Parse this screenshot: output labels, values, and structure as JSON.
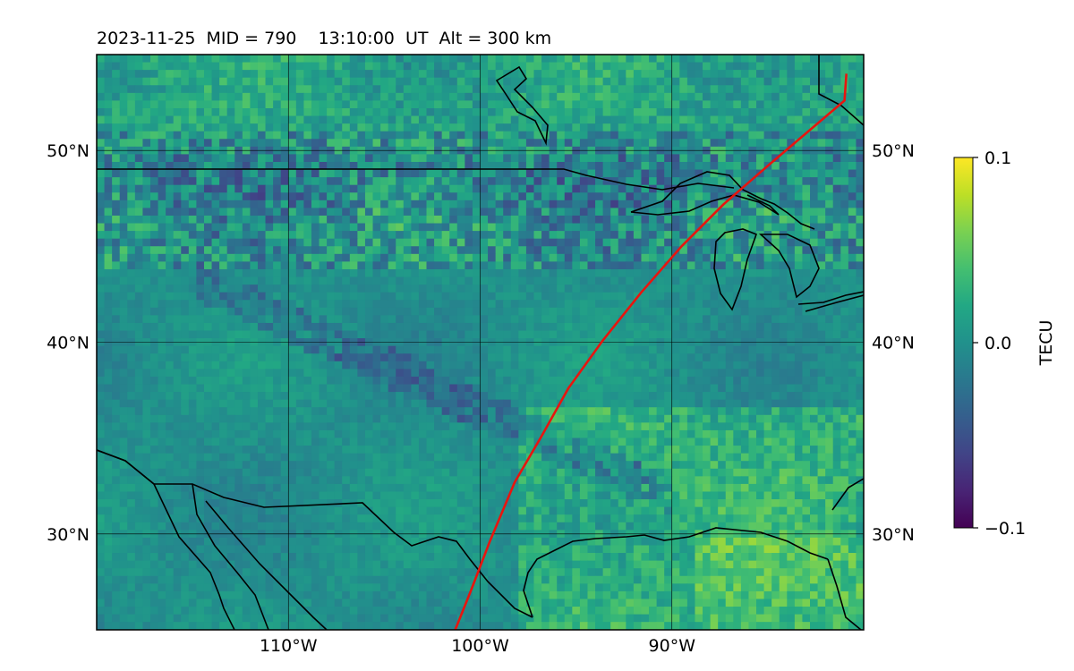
{
  "title": "2023-11-25  MID = 790    13:10:00  UT  Alt = 300 km",
  "map": {
    "lon_range": [
      -120,
      -80
    ],
    "lat_range": [
      25,
      55
    ],
    "lat_ticks": [
      {
        "value": 30,
        "label": "30°N"
      },
      {
        "value": 40,
        "label": "40°N"
      },
      {
        "value": 50,
        "label": "50°N"
      }
    ],
    "lon_ticks": [
      {
        "value": -110,
        "label": "110°W"
      },
      {
        "value": -100,
        "label": "100°W"
      },
      {
        "value": -90,
        "label": "90°W"
      }
    ],
    "gridlines": true,
    "track_color": "#e8150f",
    "track": [
      [
        -101.3,
        25
      ],
      [
        -100.5,
        27
      ],
      [
        -99.5,
        29.6
      ],
      [
        -98.2,
        32.7
      ],
      [
        -96.8,
        35.1
      ],
      [
        -95.4,
        37.6
      ],
      [
        -93.6,
        40.1
      ],
      [
        -91.6,
        42.6
      ],
      [
        -89.5,
        45
      ],
      [
        -87.3,
        47.2
      ],
      [
        -85.0,
        49.2
      ],
      [
        -83.0,
        50.9
      ],
      [
        -81.0,
        52.6
      ],
      [
        -80.9,
        54.0
      ]
    ]
  },
  "colorbar": {
    "label": "TECU",
    "min": -0.1,
    "max": 0.1,
    "ticks": [
      {
        "value": 0.1,
        "label": "0.1"
      },
      {
        "value": 0.0,
        "label": "0.0"
      },
      {
        "value": -0.1,
        "label": "−0.1"
      }
    ],
    "colormap": "viridis"
  }
}
